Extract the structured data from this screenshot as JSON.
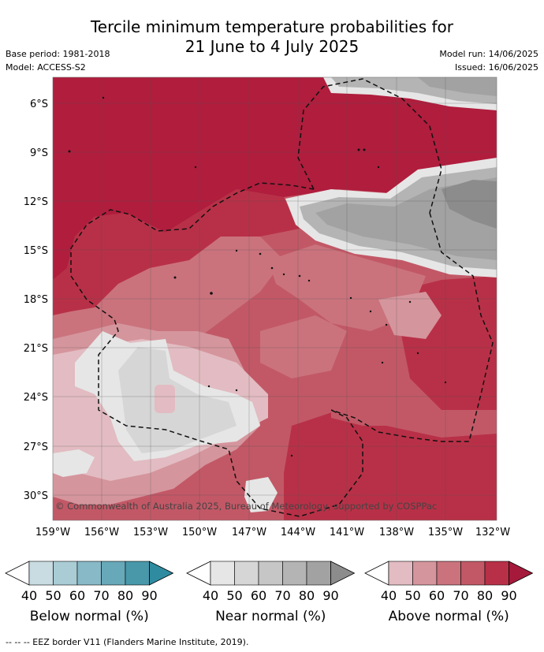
{
  "header": {
    "title_line1": "Tercile minimum temperature probabilities for",
    "title_line2": "21 June to 4 July 2025",
    "base_period": "Base period: 1981-2018",
    "model": "Model: ACCESS-S2",
    "model_run": "Model run: 14/06/2025",
    "issued": "Issued: 16/06/2025"
  },
  "map": {
    "lat_labels": [
      "6°S",
      "9°S",
      "12°S",
      "15°S",
      "18°S",
      "21°S",
      "24°S",
      "27°S",
      "30°S"
    ],
    "lon_labels": [
      "159°W",
      "156°W",
      "153°W",
      "150°W",
      "147°W",
      "144°W",
      "141°W",
      "138°W",
      "135°W",
      "132°W"
    ],
    "copyright": "© Commonwealth of Australia 2025, Bureau of Meteorology, supported by COSPPac",
    "eez_border": "dashed black"
  },
  "legends": [
    {
      "title": "Below normal (%)",
      "ticks": [
        "40",
        "50",
        "60",
        "70",
        "80",
        "90"
      ],
      "colors": [
        "#c8dce2",
        "#a9ccd5",
        "#88b9c7",
        "#67a8b9",
        "#4898aa",
        "#2f8ba0"
      ]
    },
    {
      "title": "Near normal (%)",
      "ticks": [
        "40",
        "50",
        "60",
        "70",
        "80",
        "90"
      ],
      "colors": [
        "#e6e6e6",
        "#d6d6d6",
        "#c6c6c6",
        "#b4b4b4",
        "#a2a2a2",
        "#8c8c8c"
      ]
    },
    {
      "title": "Above normal (%)",
      "ticks": [
        "40",
        "50",
        "60",
        "70",
        "80",
        "90"
      ],
      "colors": [
        "#e2bcc2",
        "#d5959d",
        "#ca737d",
        "#c25866",
        "#b83047",
        "#a51a3b"
      ]
    }
  ],
  "footnote": "--  --  -- EEZ border V11 (Flanders Marine Institute, 2019)."
}
